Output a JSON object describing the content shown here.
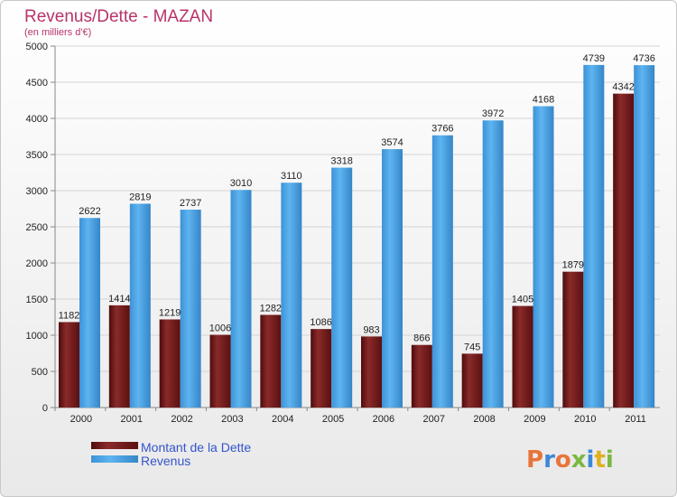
{
  "chart_data": {
    "type": "bar",
    "title": "Revenus/Dette - MAZAN",
    "subtitle": "(en milliers d'€)",
    "categories": [
      "2000",
      "2001",
      "2002",
      "2003",
      "2004",
      "2005",
      "2006",
      "2007",
      "2008",
      "2009",
      "2010",
      "2011"
    ],
    "series": [
      {
        "name": "Montant de la Dette",
        "color": "#7a1c1c",
        "values": [
          1182,
          1414,
          1219,
          1006,
          1282,
          1086,
          983,
          866,
          745,
          1405,
          1879,
          4342
        ]
      },
      {
        "name": "Revenus",
        "color": "#4aa3e6",
        "values": [
          2622,
          2819,
          2737,
          3010,
          3110,
          3318,
          3574,
          3766,
          3972,
          4168,
          4739,
          4736
        ]
      }
    ],
    "ylim": [
      0,
      5000
    ],
    "yticks": [
      0,
      500,
      1000,
      1500,
      2000,
      2500,
      3000,
      3500,
      4000,
      4500,
      5000
    ],
    "grid": true,
    "legend_position": "bottom-left"
  },
  "logo": {
    "text": "Proxiti",
    "colors": [
      "#e8743b",
      "#3c88d8",
      "#e8743b",
      "#7ab840",
      "#3c88d8",
      "#e0b020",
      "#7ab840"
    ]
  }
}
